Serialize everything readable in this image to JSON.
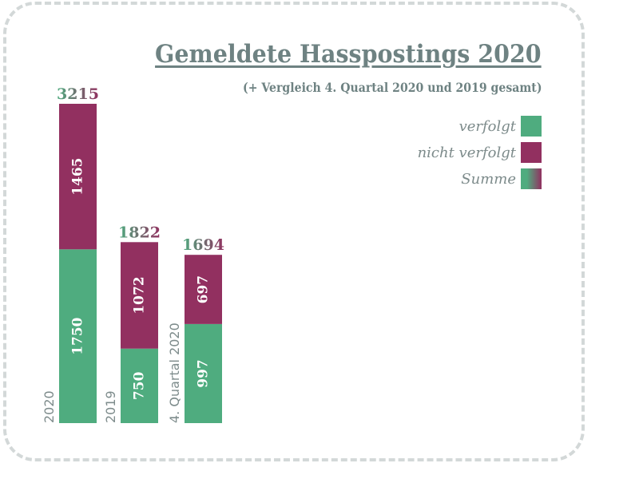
{
  "title": "Gemeldete Hasspostings 2020",
  "subtitle": "(+ Vergleich 4. Quartal 2020 und 2019 gesamt)",
  "colors": {
    "verfolgt": "#4fac7f",
    "nicht_verfolgt": "#923060",
    "category_label": "#7e8c8c"
  },
  "legend": [
    {
      "label": "verfolgt",
      "swatch": "verfolgt"
    },
    {
      "label": "nicht verfolgt",
      "swatch": "nicht_verfolgt"
    },
    {
      "label": "Summe",
      "swatch": "gradient"
    }
  ],
  "chart_data": {
    "type": "bar",
    "stacked": true,
    "title": "Gemeldete Hasspostings 2020",
    "subtitle": "(+ Vergleich 4. Quartal 2020 und 2019 gesamt)",
    "categories": [
      "2020",
      "2019",
      "4. Quartal 2020"
    ],
    "series": [
      {
        "name": "verfolgt",
        "values": [
          1750,
          750,
          997
        ]
      },
      {
        "name": "nicht verfolgt",
        "values": [
          1465,
          1072,
          697
        ]
      }
    ],
    "totals": [
      3215,
      1822,
      1694
    ],
    "ylim": [
      0,
      3215
    ],
    "legend_position": "top-right",
    "grid": false
  }
}
